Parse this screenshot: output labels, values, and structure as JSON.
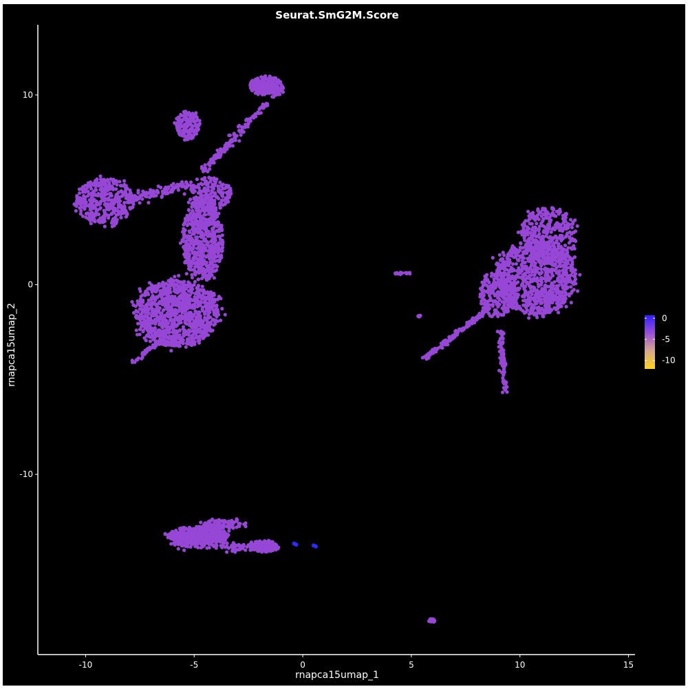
{
  "chart_data": {
    "type": "scatter",
    "title": "Seurat.SmG2M.Score",
    "xlabel": "rnapca15umap_1",
    "ylabel": "rnapca15umap_2",
    "xlim": [
      -12.2,
      15.3
    ],
    "ylim": [
      -19.5,
      13.7
    ],
    "x_ticks": [
      -10,
      -5,
      0,
      5,
      10,
      15
    ],
    "y_ticks": [
      -10,
      0,
      10
    ],
    "x_tick_labels": [
      "-10",
      "-5",
      "0",
      "5",
      "10",
      "15"
    ],
    "y_tick_labels": [
      "-10",
      "0",
      "10"
    ],
    "background": "#000000",
    "point_color": "#9747d6",
    "highlight_color": "#2c2cff",
    "legend": {
      "position": "right",
      "range": [
        -12,
        0.7
      ],
      "ticks": [
        0,
        -5,
        -10
      ],
      "tick_labels": [
        "0",
        "-5",
        "-10"
      ],
      "colors": [
        "#ffd21a",
        "#d7a98d",
        "#9b4fd8",
        "#3020ff"
      ]
    },
    "clusters": [
      {
        "name": "large-round-left",
        "cx": -5.8,
        "cy": -1.5,
        "rx": 1.95,
        "ry": 1.75,
        "n": 1100
      },
      {
        "name": "stalk-middle",
        "cx": -4.6,
        "cy": 2.4,
        "rx": 0.95,
        "ry": 2.2,
        "n": 650
      },
      {
        "name": "upper-stalk",
        "cx": -4.2,
        "cy": 4.8,
        "rx": 0.9,
        "ry": 0.9,
        "n": 160
      },
      {
        "name": "left-blob",
        "cx": -9.1,
        "cy": 4.4,
        "rx": 1.35,
        "ry": 1.2,
        "n": 420
      },
      {
        "name": "top-left-small",
        "cx": -5.3,
        "cy": 8.4,
        "rx": 0.55,
        "ry": 0.75,
        "n": 160
      },
      {
        "name": "top-right-small",
        "cx": -1.7,
        "cy": 10.5,
        "rx": 0.75,
        "ry": 0.5,
        "n": 220
      },
      {
        "name": "right-blob-main",
        "cx": 10.7,
        "cy": 0.4,
        "rx": 1.9,
        "ry": 2.0,
        "n": 1000
      },
      {
        "name": "right-blob-upper",
        "cx": 11.3,
        "cy": 2.6,
        "rx": 1.3,
        "ry": 1.5,
        "n": 350
      },
      {
        "name": "right-blob-left",
        "cx": 9.0,
        "cy": -0.5,
        "rx": 0.9,
        "ry": 1.2,
        "n": 230
      },
      {
        "name": "bottom-left",
        "cx": -4.8,
        "cy": -13.2,
        "rx": 1.4,
        "ry": 0.45,
        "n": 420
      },
      {
        "name": "bottom-right",
        "cx": -1.8,
        "cy": -13.8,
        "rx": 0.7,
        "ry": 0.3,
        "n": 160
      },
      {
        "name": "bottom-top",
        "cx": -3.6,
        "cy": -12.6,
        "rx": 1.0,
        "ry": 0.25,
        "n": 80
      },
      {
        "name": "lone-cluster",
        "cx": 5.95,
        "cy": -17.7,
        "rx": 0.15,
        "ry": 0.1,
        "n": 30
      },
      {
        "name": "small-group",
        "cx": 4.6,
        "cy": 0.6,
        "rx": 0.4,
        "ry": 0.06,
        "n": 14
      },
      {
        "name": "tiny-group",
        "cx": 5.4,
        "cy": -1.65,
        "rx": 0.1,
        "ry": 0.06,
        "n": 6
      }
    ],
    "streaks": [
      {
        "name": "connector-upper",
        "x0": -4.6,
        "y0": 6.0,
        "x1": -2.4,
        "y1": 8.7,
        "n": 110,
        "w": 0.2
      },
      {
        "name": "connector-top",
        "x0": -2.4,
        "y0": 8.7,
        "x1": -1.0,
        "y1": 10.3,
        "n": 40,
        "w": 0.15
      },
      {
        "name": "bridge-left",
        "x0": -7.9,
        "y0": 4.6,
        "x1": -5.0,
        "y1": 5.3,
        "n": 110,
        "w": 0.3
      },
      {
        "name": "tail-right-blob",
        "x0": 5.6,
        "y0": -3.9,
        "x1": 8.6,
        "y1": -1.2,
        "n": 150,
        "w": 0.12
      },
      {
        "name": "tail-down",
        "x0": 9.1,
        "y0": -2.5,
        "x1": 9.35,
        "y1": -5.6,
        "n": 80,
        "w": 0.15
      },
      {
        "name": "tail-bottom-left",
        "x0": -7.8,
        "y0": -4.1,
        "x1": -6.6,
        "y1": -3.0,
        "n": 40,
        "w": 0.12
      },
      {
        "name": "bottom-band",
        "x0": -6.0,
        "y0": -13.6,
        "x1": -2.5,
        "y1": -13.9,
        "n": 120,
        "w": 0.22
      }
    ],
    "highlights": [
      {
        "x": -0.4,
        "y": -13.65
      },
      {
        "x": -0.3,
        "y": -13.7
      },
      {
        "x": 0.5,
        "y": -13.75
      },
      {
        "x": 0.6,
        "y": -13.8
      }
    ]
  }
}
